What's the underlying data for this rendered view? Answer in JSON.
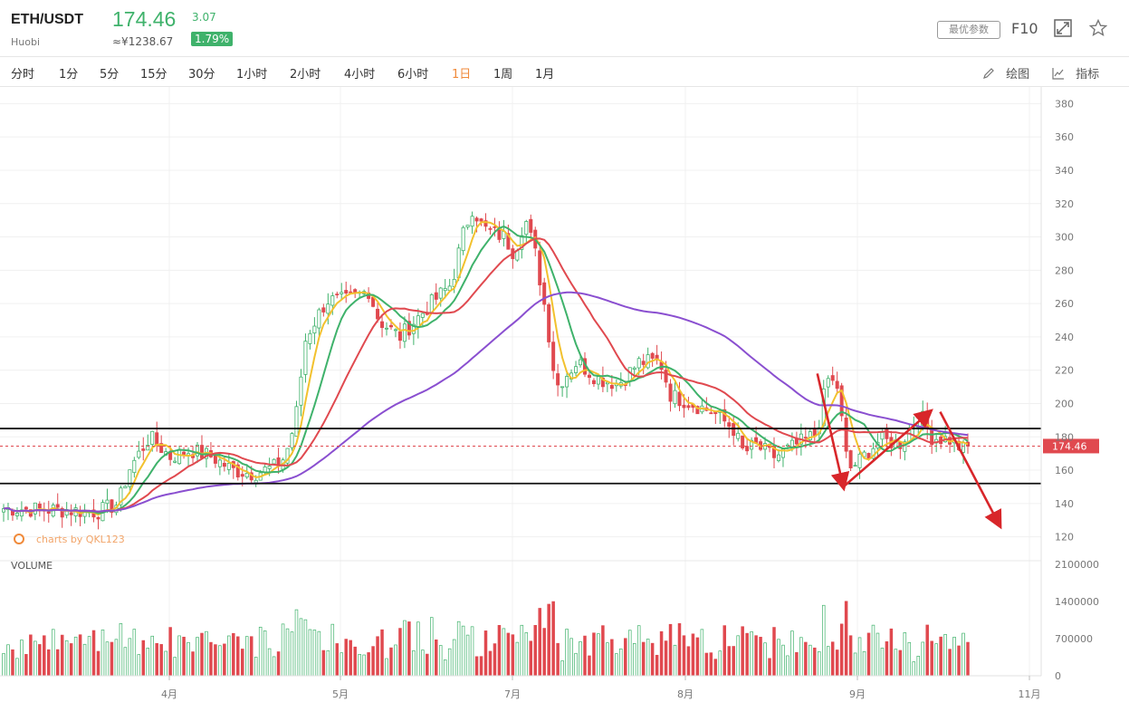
{
  "header": {
    "pair": "ETH/USDT",
    "exchange": "Huobi",
    "price": "174.46",
    "cny_price": "≈¥1238.67",
    "change": "3.07",
    "change_pct": "1.79%",
    "params_label": "最优参数",
    "f10_label": "F10"
  },
  "timeframes": [
    "分时",
    "1分",
    "5分",
    "15分",
    "30分",
    "1小时",
    "2小时",
    "4小时",
    "6小时",
    "1日",
    "1周",
    "1月"
  ],
  "active_timeframe": "1日",
  "tools": {
    "draw_label": "绘图",
    "indicator_label": "指标"
  },
  "colors": {
    "up": "#3fb26b",
    "down": "#e0494f",
    "ma5": "#f2c12e",
    "ma10": "#3fb26b",
    "ma20": "#e0494f",
    "ma60": "#8a4fd0",
    "accent": "#f08a3a"
  },
  "watermark": "charts by QKL123",
  "volume_label": "VOLUME",
  "chart_data": {
    "type": "candlestick",
    "y_ticks": [
      120,
      140,
      160,
      180,
      200,
      220,
      240,
      260,
      280,
      300,
      320,
      340,
      360,
      380
    ],
    "y_range": [
      110,
      390
    ],
    "volume_ticks": [
      "2100000",
      "1400000",
      "700000",
      "0"
    ],
    "volume_range": [
      0,
      2100000
    ],
    "x_labels": [
      "4月",
      "5月",
      "7月",
      "8月",
      "9月",
      "11月"
    ],
    "last_price_label": "174.46",
    "horizontal_lines": [
      185,
      152
    ],
    "last_price_line": 174.46,
    "arrows": [
      {
        "from": [
          0.785,
          218
        ],
        "to": [
          0.81,
          150
        ]
      },
      {
        "from": [
          0.81,
          150
        ],
        "to": [
          0.893,
          195
        ]
      },
      {
        "from": [
          0.903,
          195
        ],
        "to": [
          0.96,
          127
        ]
      }
    ],
    "price_keypoints": [
      [
        0,
        137
      ],
      [
        0.06,
        136
      ],
      [
        0.09,
        135
      ],
      [
        0.11,
        140
      ],
      [
        0.12,
        160
      ],
      [
        0.14,
        180
      ],
      [
        0.16,
        168
      ],
      [
        0.18,
        172
      ],
      [
        0.2,
        168
      ],
      [
        0.22,
        160
      ],
      [
        0.24,
        158
      ],
      [
        0.26,
        162
      ],
      [
        0.27,
        168
      ],
      [
        0.28,
        190
      ],
      [
        0.29,
        240
      ],
      [
        0.31,
        262
      ],
      [
        0.33,
        262
      ],
      [
        0.35,
        268
      ],
      [
        0.36,
        250
      ],
      [
        0.38,
        240
      ],
      [
        0.41,
        260
      ],
      [
        0.43,
        272
      ],
      [
        0.44,
        300
      ],
      [
        0.45,
        318
      ],
      [
        0.46,
        305
      ],
      [
        0.48,
        300
      ],
      [
        0.49,
        290
      ],
      [
        0.5,
        312
      ],
      [
        0.51,
        290
      ],
      [
        0.52,
        255
      ],
      [
        0.53,
        210
      ],
      [
        0.55,
        225
      ],
      [
        0.57,
        215
      ],
      [
        0.59,
        212
      ],
      [
        0.61,
        225
      ],
      [
        0.63,
        225
      ],
      [
        0.64,
        205
      ],
      [
        0.66,
        200
      ],
      [
        0.68,
        195
      ],
      [
        0.7,
        185
      ],
      [
        0.71,
        170
      ],
      [
        0.72,
        175
      ],
      [
        0.74,
        168
      ],
      [
        0.76,
        175
      ],
      [
        0.78,
        182
      ],
      [
        0.79,
        215
      ],
      [
        0.8,
        210
      ],
      [
        0.81,
        160
      ],
      [
        0.82,
        165
      ],
      [
        0.84,
        178
      ],
      [
        0.86,
        176
      ],
      [
        0.87,
        185
      ],
      [
        0.88,
        193
      ],
      [
        0.89,
        180
      ],
      [
        0.91,
        178
      ],
      [
        0.92,
        172
      ],
      [
        0.925,
        174
      ]
    ],
    "ma_series": [
      {
        "name": "MA5",
        "window": 5
      },
      {
        "name": "MA10",
        "window": 10
      },
      {
        "name": "MA20",
        "window": 20
      },
      {
        "name": "MA60",
        "window": 60
      }
    ]
  }
}
